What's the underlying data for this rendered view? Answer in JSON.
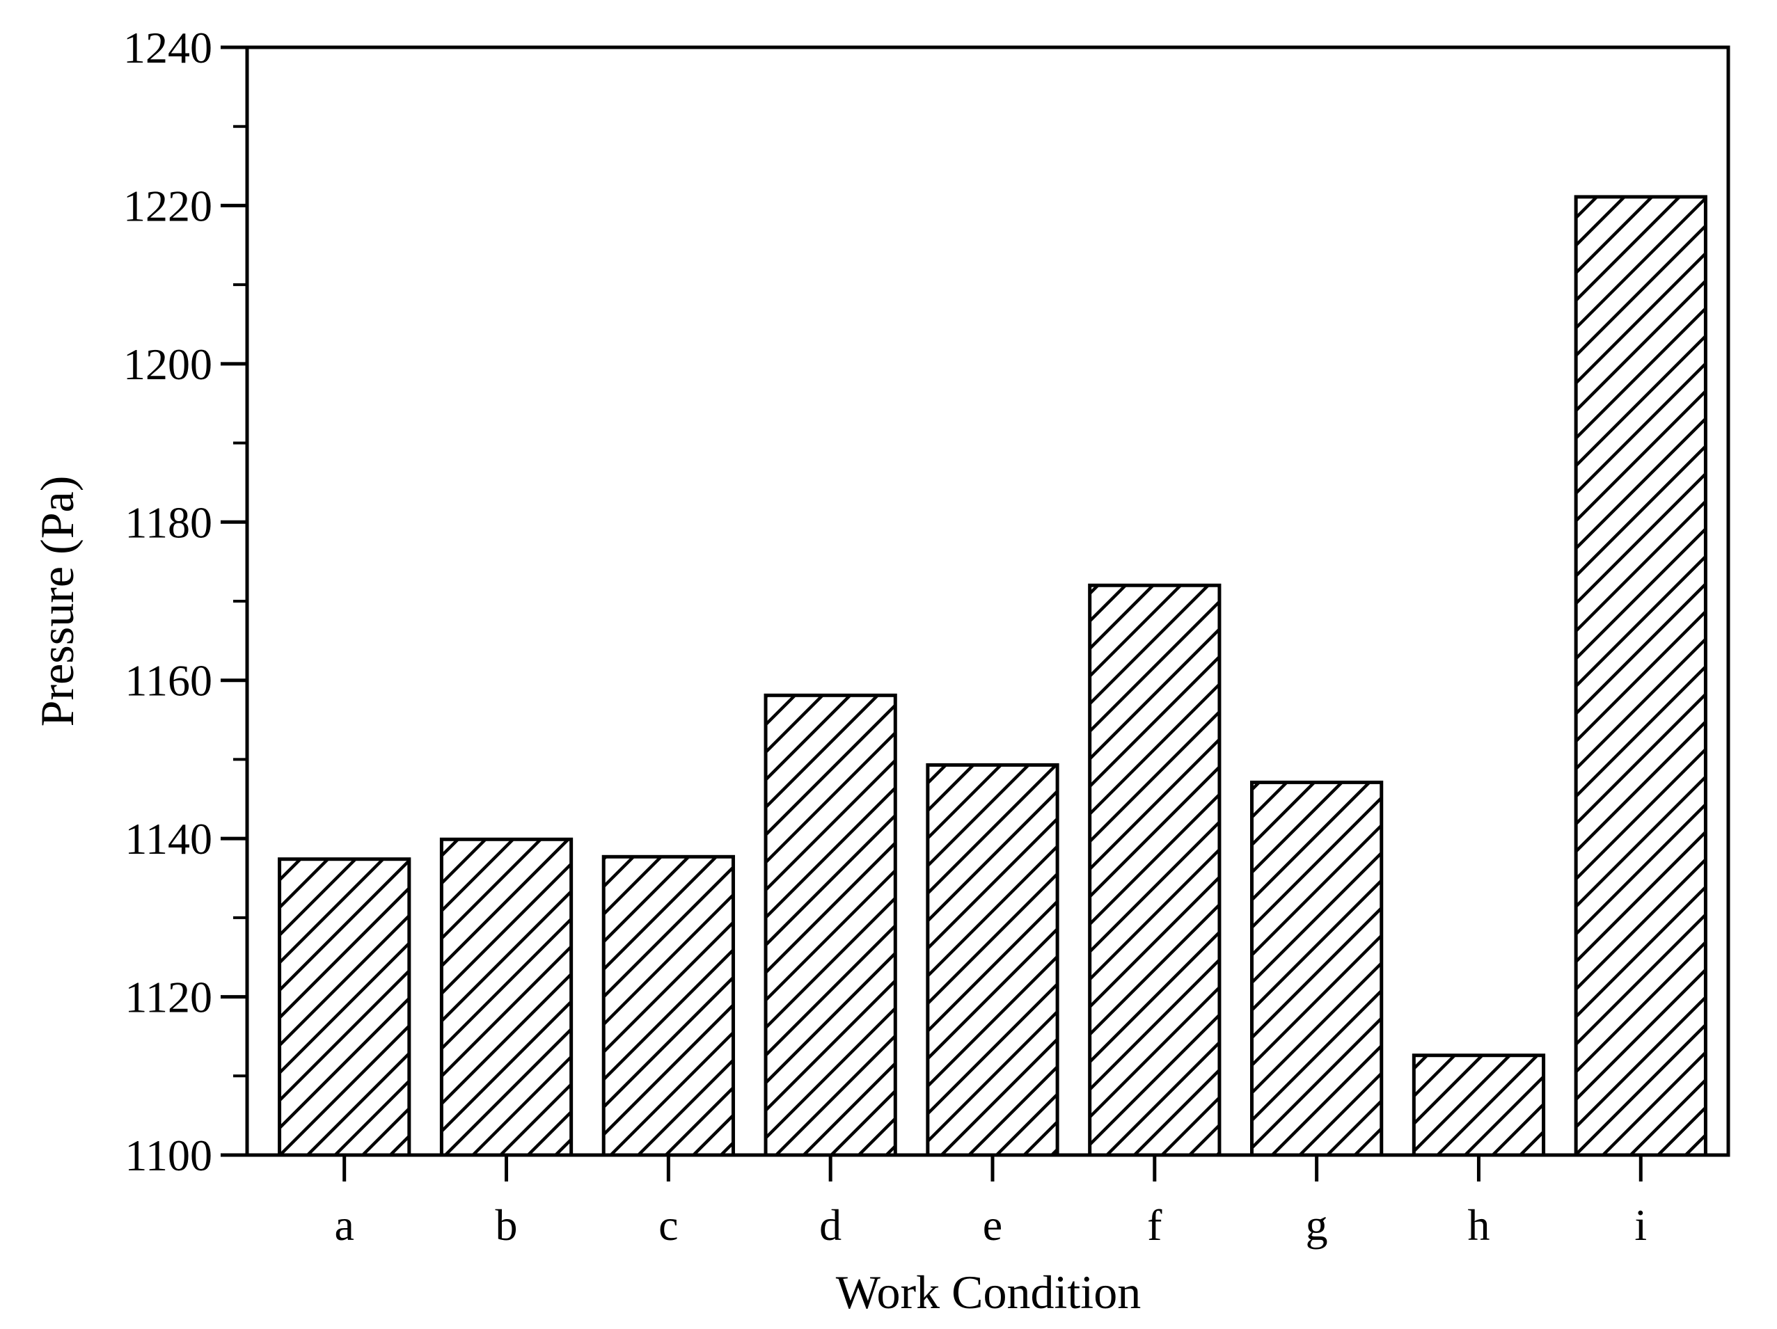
{
  "chart_data": {
    "type": "bar",
    "title": "",
    "xlabel": "Work Condition",
    "ylabel": "Pressure (Pa)",
    "categories": [
      "a",
      "b",
      "c",
      "d",
      "e",
      "f",
      "g",
      "h",
      "i"
    ],
    "values": [
      1137.4,
      1139.9,
      1137.7,
      1158.1,
      1149.3,
      1172.0,
      1147.1,
      1112.6,
      1221.1
    ],
    "ylim": [
      1100,
      1240
    ],
    "yticks": [
      1100,
      1120,
      1140,
      1160,
      1180,
      1200,
      1220,
      1240
    ],
    "y_minor_step": 10,
    "bar_fill": "hatched",
    "colors": {
      "stroke": "#000000",
      "background": "#ffffff"
    },
    "grid": false,
    "legend": "none"
  }
}
